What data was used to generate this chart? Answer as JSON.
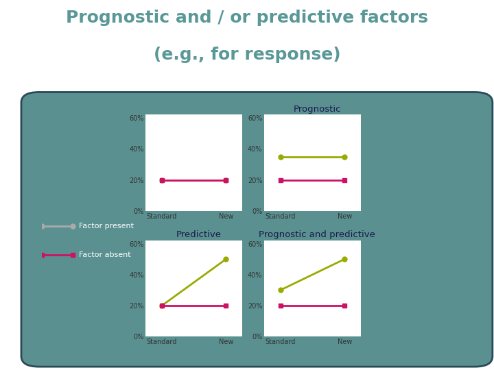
{
  "title_line1": "Prognostic and / or predictive factors",
  "title_line2": "(e.g., for response)",
  "title_color": "#5a9898",
  "title_fontsize": 18,
  "bg_color": "#5a9090",
  "bg_edge_color": "#2a4a5a",
  "panel_bg": "#ffffff",
  "x_labels": [
    "Standard",
    "New"
  ],
  "y_ticks": [
    0,
    20,
    40,
    60
  ],
  "color_present": "#99aa00",
  "color_absent": "#cc1166",
  "panels": [
    {
      "title": "",
      "present": [
        20,
        20
      ],
      "absent": [
        20,
        20
      ]
    },
    {
      "title": "Prognostic",
      "present": [
        35,
        35
      ],
      "absent": [
        20,
        20
      ]
    },
    {
      "title": "Predictive",
      "present": [
        20,
        50
      ],
      "absent": [
        20,
        20
      ]
    },
    {
      "title": "Prognostic and predictive",
      "present": [
        30,
        50
      ],
      "absent": [
        20,
        20
      ]
    }
  ],
  "legend_present_label": "Factor present",
  "legend_absent_label": "Factor absent",
  "legend_color_present": "#aaaaaa",
  "legend_color_absent": "#cc1166",
  "panel_title_color": "#1a1a4a",
  "panel_title_fontsize": 9.5
}
